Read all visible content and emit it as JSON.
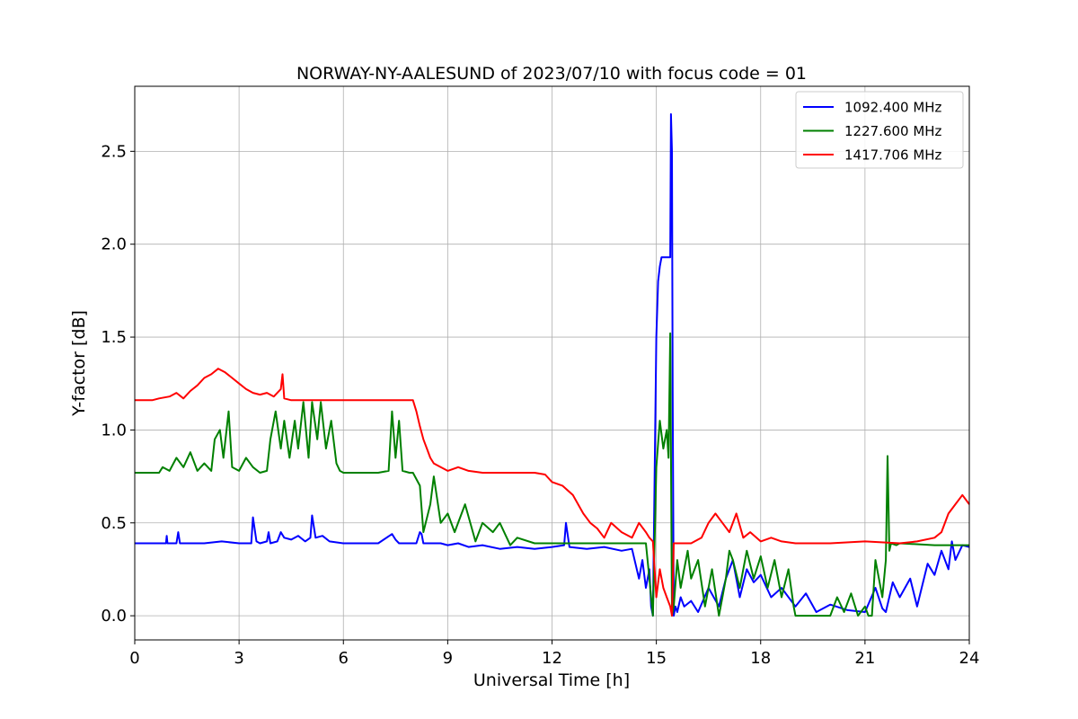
{
  "chart_data": {
    "type": "line",
    "title": "NORWAY-NY-AALESUND of 2023/07/10 with focus code = 01",
    "xlabel": "Universal Time [h]",
    "ylabel": "Y-factor [dB]",
    "xlim": [
      0,
      24
    ],
    "ylim": [
      -0.13,
      2.85
    ],
    "xticks": [
      0,
      3,
      6,
      9,
      12,
      15,
      18,
      21,
      24
    ],
    "xtick_labels": [
      "0",
      "3",
      "6",
      "9",
      "12",
      "15",
      "18",
      "21",
      "24"
    ],
    "yticks": [
      0.0,
      0.5,
      1.0,
      1.5,
      2.0,
      2.5
    ],
    "ytick_labels": [
      "0.0",
      "0.5",
      "1.0",
      "1.5",
      "2.0",
      "2.5"
    ],
    "grid": true,
    "legend_position": "top-right",
    "series": [
      {
        "name": "1092.400 MHz",
        "color": "#0000ff",
        "x": [
          0,
          0.9,
          0.92,
          0.94,
          1.2,
          1.25,
          1.3,
          2.0,
          2.5,
          3.0,
          3.35,
          3.4,
          3.5,
          3.6,
          3.8,
          3.85,
          3.9,
          4.1,
          4.2,
          4.3,
          4.5,
          4.7,
          4.9,
          5.05,
          5.1,
          5.2,
          5.4,
          5.6,
          6.0,
          7.0,
          7.4,
          7.5,
          7.6,
          7.9,
          8.1,
          8.2,
          8.25,
          8.3,
          8.5,
          8.8,
          9.0,
          9.3,
          9.6,
          10.0,
          10.5,
          11.0,
          11.5,
          12.0,
          12.35,
          12.4,
          12.5,
          13.0,
          13.5,
          14.0,
          14.3,
          14.5,
          14.6,
          14.7,
          14.8,
          14.85,
          14.9,
          14.95,
          15.0,
          15.05,
          15.1,
          15.15,
          15.2,
          15.3,
          15.4,
          15.42,
          15.45,
          15.47,
          15.5,
          15.55,
          15.6,
          15.7,
          15.8,
          16.0,
          16.2,
          16.5,
          16.8,
          17.0,
          17.2,
          17.4,
          17.6,
          17.8,
          18.0,
          18.3,
          18.6,
          19.0,
          19.3,
          19.6,
          20.0,
          20.5,
          21.0,
          21.3,
          21.5,
          21.6,
          21.8,
          22.0,
          22.3,
          22.5,
          22.8,
          23.0,
          23.2,
          23.4,
          23.5,
          23.6,
          23.8,
          24.0
        ],
        "values": [
          0.39,
          0.39,
          0.43,
          0.39,
          0.39,
          0.45,
          0.39,
          0.39,
          0.4,
          0.39,
          0.39,
          0.53,
          0.4,
          0.39,
          0.4,
          0.45,
          0.39,
          0.4,
          0.45,
          0.42,
          0.41,
          0.43,
          0.4,
          0.42,
          0.54,
          0.42,
          0.43,
          0.4,
          0.39,
          0.39,
          0.44,
          0.41,
          0.39,
          0.39,
          0.39,
          0.45,
          0.44,
          0.39,
          0.39,
          0.39,
          0.38,
          0.39,
          0.37,
          0.38,
          0.36,
          0.37,
          0.36,
          0.37,
          0.38,
          0.5,
          0.37,
          0.36,
          0.37,
          0.35,
          0.36,
          0.2,
          0.3,
          0.15,
          0.25,
          0.05,
          0.0,
          0.75,
          1.5,
          1.8,
          1.88,
          1.93,
          1.93,
          1.93,
          1.93,
          2.7,
          2.5,
          1.2,
          0.0,
          0.05,
          0.02,
          0.1,
          0.05,
          0.08,
          0.02,
          0.15,
          0.05,
          0.2,
          0.3,
          0.1,
          0.25,
          0.18,
          0.22,
          0.1,
          0.15,
          0.05,
          0.12,
          0.02,
          0.06,
          0.03,
          0.02,
          0.15,
          0.04,
          0.02,
          0.18,
          0.1,
          0.2,
          0.05,
          0.28,
          0.22,
          0.35,
          0.25,
          0.4,
          0.3,
          0.38,
          0.37
        ]
      },
      {
        "name": "1227.600 MHz",
        "color": "#008000",
        "x": [
          0,
          0.7,
          0.8,
          1.0,
          1.2,
          1.4,
          1.6,
          1.8,
          2.0,
          2.2,
          2.3,
          2.45,
          2.55,
          2.7,
          2.8,
          3.0,
          3.2,
          3.4,
          3.6,
          3.8,
          3.9,
          4.05,
          4.2,
          4.3,
          4.45,
          4.6,
          4.7,
          4.85,
          5.0,
          5.1,
          5.25,
          5.35,
          5.5,
          5.65,
          5.8,
          5.9,
          6.0,
          7.0,
          7.3,
          7.4,
          7.5,
          7.6,
          7.7,
          7.9,
          8.0,
          8.2,
          8.3,
          8.5,
          8.6,
          8.8,
          9.0,
          9.2,
          9.5,
          9.8,
          10.0,
          10.3,
          10.5,
          10.8,
          11.0,
          11.5,
          12.0,
          13.0,
          14.0,
          14.7,
          14.8,
          14.85,
          14.9,
          15.0,
          15.1,
          15.2,
          15.3,
          15.35,
          15.4,
          15.45,
          15.5,
          15.6,
          15.7,
          15.9,
          16.0,
          16.2,
          16.4,
          16.6,
          16.8,
          16.9,
          17.0,
          17.1,
          17.2,
          17.4,
          17.6,
          17.8,
          18.0,
          18.2,
          18.4,
          18.6,
          18.8,
          18.95,
          19.0,
          19.5,
          20.0,
          20.2,
          20.4,
          20.6,
          20.8,
          21.0,
          21.1,
          21.2,
          21.3,
          21.4,
          21.5,
          21.6,
          21.65,
          21.7,
          21.75,
          21.9,
          22.0,
          23.0,
          23.5,
          24.0
        ],
        "values": [
          0.77,
          0.77,
          0.8,
          0.78,
          0.85,
          0.8,
          0.88,
          0.78,
          0.82,
          0.78,
          0.95,
          1.0,
          0.85,
          1.1,
          0.8,
          0.78,
          0.85,
          0.8,
          0.77,
          0.78,
          0.95,
          1.1,
          0.9,
          1.05,
          0.85,
          1.05,
          0.9,
          1.15,
          0.85,
          1.15,
          0.95,
          1.15,
          0.9,
          1.05,
          0.82,
          0.78,
          0.77,
          0.77,
          0.78,
          1.1,
          0.85,
          1.05,
          0.78,
          0.77,
          0.77,
          0.7,
          0.45,
          0.6,
          0.75,
          0.5,
          0.55,
          0.45,
          0.6,
          0.4,
          0.5,
          0.45,
          0.5,
          0.38,
          0.42,
          0.39,
          0.39,
          0.39,
          0.39,
          0.39,
          0.2,
          0.1,
          0.0,
          0.8,
          1.05,
          0.9,
          1.0,
          0.85,
          1.52,
          0.0,
          0.05,
          0.3,
          0.15,
          0.35,
          0.2,
          0.3,
          0.05,
          0.25,
          0.0,
          0.1,
          0.2,
          0.35,
          0.3,
          0.15,
          0.35,
          0.2,
          0.32,
          0.15,
          0.3,
          0.1,
          0.25,
          0.05,
          0.0,
          0.0,
          0.0,
          0.1,
          0.02,
          0.12,
          0.0,
          0.05,
          0.0,
          0.0,
          0.3,
          0.2,
          0.1,
          0.3,
          0.86,
          0.35,
          0.39,
          0.38,
          0.39,
          0.38,
          0.38,
          0.38
        ]
      },
      {
        "name": "1417.706 MHz",
        "color": "#ff0000",
        "x": [
          0,
          0.5,
          0.7,
          1.0,
          1.2,
          1.4,
          1.6,
          1.8,
          2.0,
          2.2,
          2.4,
          2.6,
          2.8,
          3.0,
          3.2,
          3.4,
          3.6,
          3.8,
          4.0,
          4.2,
          4.25,
          4.3,
          4.5,
          5.0,
          6.0,
          7.0,
          8.0,
          8.1,
          8.2,
          8.3,
          8.4,
          8.5,
          8.6,
          8.8,
          9.0,
          9.3,
          9.6,
          10.0,
          11.0,
          11.5,
          11.8,
          12.0,
          12.3,
          12.6,
          12.9,
          13.1,
          13.3,
          13.5,
          13.7,
          14.0,
          14.3,
          14.5,
          14.7,
          14.8,
          14.9,
          15.0,
          15.1,
          15.2,
          15.3,
          15.4,
          15.45,
          15.5,
          15.55,
          16.0,
          16.3,
          16.5,
          16.7,
          16.9,
          17.1,
          17.3,
          17.5,
          17.7,
          18.0,
          18.3,
          18.6,
          19.0,
          20.0,
          21.0,
          22.0,
          22.5,
          23.0,
          23.2,
          23.4,
          23.6,
          23.8,
          24.0
        ],
        "values": [
          1.16,
          1.16,
          1.17,
          1.18,
          1.2,
          1.17,
          1.21,
          1.24,
          1.28,
          1.3,
          1.33,
          1.31,
          1.28,
          1.25,
          1.22,
          1.2,
          1.19,
          1.2,
          1.18,
          1.22,
          1.3,
          1.17,
          1.16,
          1.16,
          1.16,
          1.16,
          1.16,
          1.1,
          1.02,
          0.95,
          0.9,
          0.85,
          0.82,
          0.8,
          0.78,
          0.8,
          0.78,
          0.77,
          0.77,
          0.77,
          0.76,
          0.72,
          0.7,
          0.65,
          0.55,
          0.5,
          0.47,
          0.42,
          0.5,
          0.45,
          0.42,
          0.5,
          0.45,
          0.42,
          0.4,
          0.1,
          0.25,
          0.15,
          0.1,
          0.05,
          0.0,
          0.39,
          0.39,
          0.39,
          0.42,
          0.5,
          0.55,
          0.5,
          0.45,
          0.55,
          0.42,
          0.45,
          0.4,
          0.42,
          0.4,
          0.39,
          0.39,
          0.4,
          0.39,
          0.4,
          0.42,
          0.45,
          0.55,
          0.6,
          0.65,
          0.6
        ]
      }
    ]
  }
}
